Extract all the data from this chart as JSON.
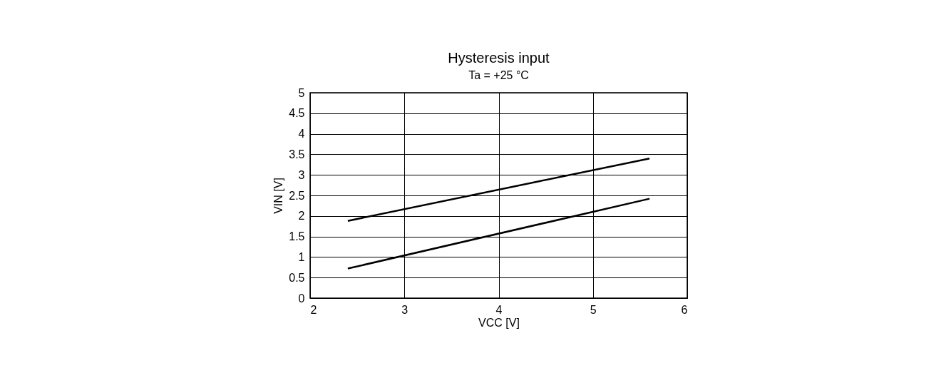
{
  "chart_data": {
    "type": "line",
    "title": "Hysteresis input",
    "subtitle": "Ta = +25 °C",
    "xlabel": "VCC [V]",
    "ylabel": "VIN [V]",
    "x": [
      2.4,
      5.6
    ],
    "series": [
      {
        "color": "#000000",
        "values": [
          1.88,
          3.4
        ]
      },
      {
        "color": "#000000",
        "values": [
          0.72,
          2.42
        ]
      }
    ],
    "xlim": [
      2,
      6
    ],
    "xticks": [
      2,
      3,
      4,
      5,
      6
    ],
    "ylim": [
      0,
      5
    ],
    "yticks": [
      0,
      0.5,
      1,
      1.5,
      2,
      2.5,
      3,
      3.5,
      4,
      4.5,
      5
    ],
    "grid": true,
    "legend": false,
    "marker": "none",
    "line_style": "solid"
  }
}
